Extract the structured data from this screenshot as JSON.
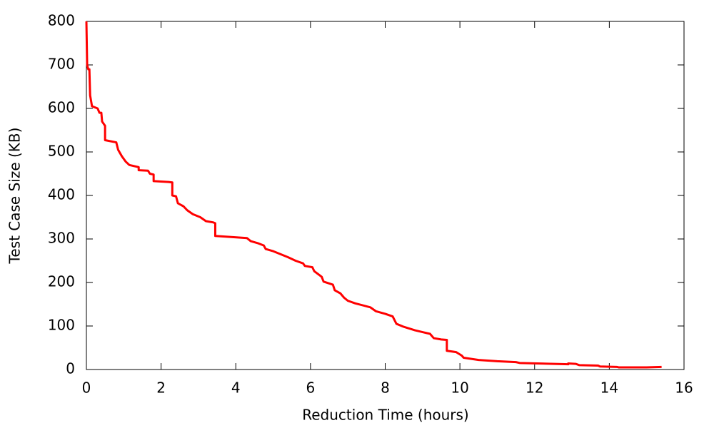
{
  "chart_data": {
    "type": "line",
    "xlabel": "Reduction Time (hours)",
    "ylabel": "Test Case Size (KB)",
    "color": "#ff0000",
    "x": [
      0,
      0.02,
      0.05,
      0.08,
      0.1,
      0.15,
      0.3,
      0.35,
      0.4,
      0.42,
      0.5,
      0.5,
      0.8,
      0.85,
      0.95,
      1.05,
      1.15,
      1.4,
      1.4,
      1.65,
      1.7,
      1.8,
      1.8,
      2.2,
      2.3,
      2.3,
      2.4,
      2.45,
      2.6,
      2.7,
      2.85,
      3.05,
      3.2,
      3.4,
      3.45,
      3.45,
      4.3,
      4.4,
      4.6,
      4.75,
      4.8,
      5.0,
      5.2,
      5.4,
      5.6,
      5.8,
      5.85,
      6.05,
      6.1,
      6.3,
      6.35,
      6.6,
      6.65,
      6.8,
      6.9,
      7.0,
      7.2,
      7.6,
      7.75,
      8.0,
      8.2,
      8.3,
      8.5,
      8.8,
      9.0,
      9.2,
      9.3,
      9.5,
      9.65,
      9.65,
      9.9,
      10.05,
      10.1,
      10.5,
      11.0,
      11.5,
      11.6,
      12.9,
      12.9,
      13.1,
      13.2,
      13.7,
      13.75,
      14.2,
      14.25,
      15.0,
      15.4
    ],
    "values": [
      800,
      700,
      690,
      690,
      630,
      605,
      600,
      590,
      590,
      570,
      560,
      527,
      522,
      505,
      490,
      478,
      470,
      465,
      458,
      457,
      450,
      448,
      433,
      431,
      430,
      400,
      398,
      382,
      375,
      366,
      357,
      350,
      341,
      338,
      336,
      307,
      302,
      295,
      290,
      285,
      277,
      272,
      265,
      258,
      250,
      244,
      238,
      235,
      226,
      213,
      202,
      195,
      182,
      175,
      165,
      158,
      152,
      143,
      134,
      128,
      122,
      105,
      98,
      90,
      86,
      82,
      72,
      69,
      68,
      43,
      40,
      32,
      27,
      22,
      19,
      17,
      15,
      12,
      14,
      13,
      10,
      9,
      7,
      6,
      5,
      5,
      6
    ],
    "xlim": [
      0,
      16
    ],
    "xticks": [
      0,
      2,
      4,
      6,
      8,
      10,
      12,
      14,
      16
    ],
    "ylim": [
      0,
      800
    ],
    "yticks": [
      0,
      100,
      200,
      300,
      400,
      500,
      600,
      700,
      800
    ],
    "grid": false
  }
}
